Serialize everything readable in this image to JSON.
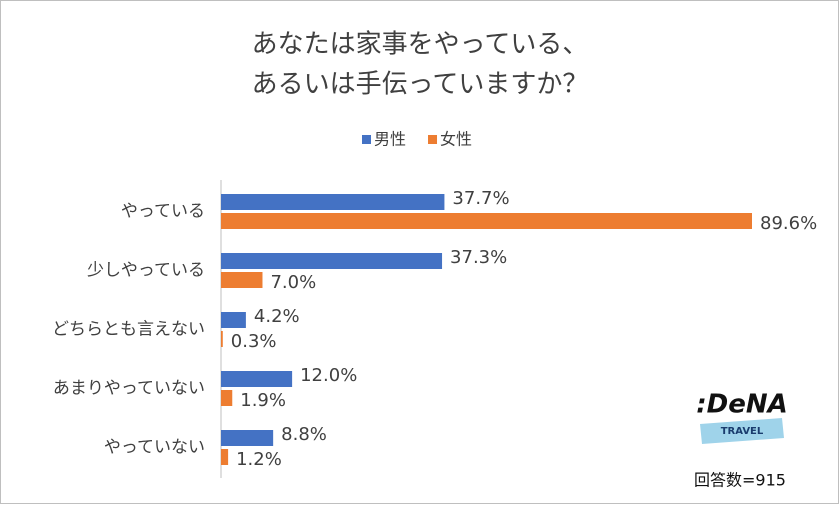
{
  "chart_data": {
    "type": "bar",
    "orientation": "horizontal",
    "title_lines": [
      "あなたは家事をやっている、",
      "あるいは手伝っていますか？"
    ],
    "categories": [
      "やっている",
      "少しやっている",
      "どちらとも言えない",
      "あまりやっていない",
      "やっていない"
    ],
    "series": [
      {
        "name": "男性",
        "color": "#4472c4",
        "values": [
          37.7,
          37.3,
          4.2,
          12.0,
          8.8
        ],
        "value_labels": [
          "37.7%",
          "37.3%",
          "4.2%",
          "12.0%",
          "8.8%"
        ]
      },
      {
        "name": "女性",
        "color": "#ed7d31",
        "values": [
          89.6,
          7.0,
          0.3,
          1.9,
          1.2
        ],
        "value_labels": [
          "89.6%",
          "7.0%",
          "0.3%",
          "1.9%",
          "1.2%"
        ]
      }
    ],
    "legend": "top",
    "annotation": "回答数=915",
    "logo": {
      "text": ":DeNA",
      "sub": "TRAVEL"
    }
  }
}
